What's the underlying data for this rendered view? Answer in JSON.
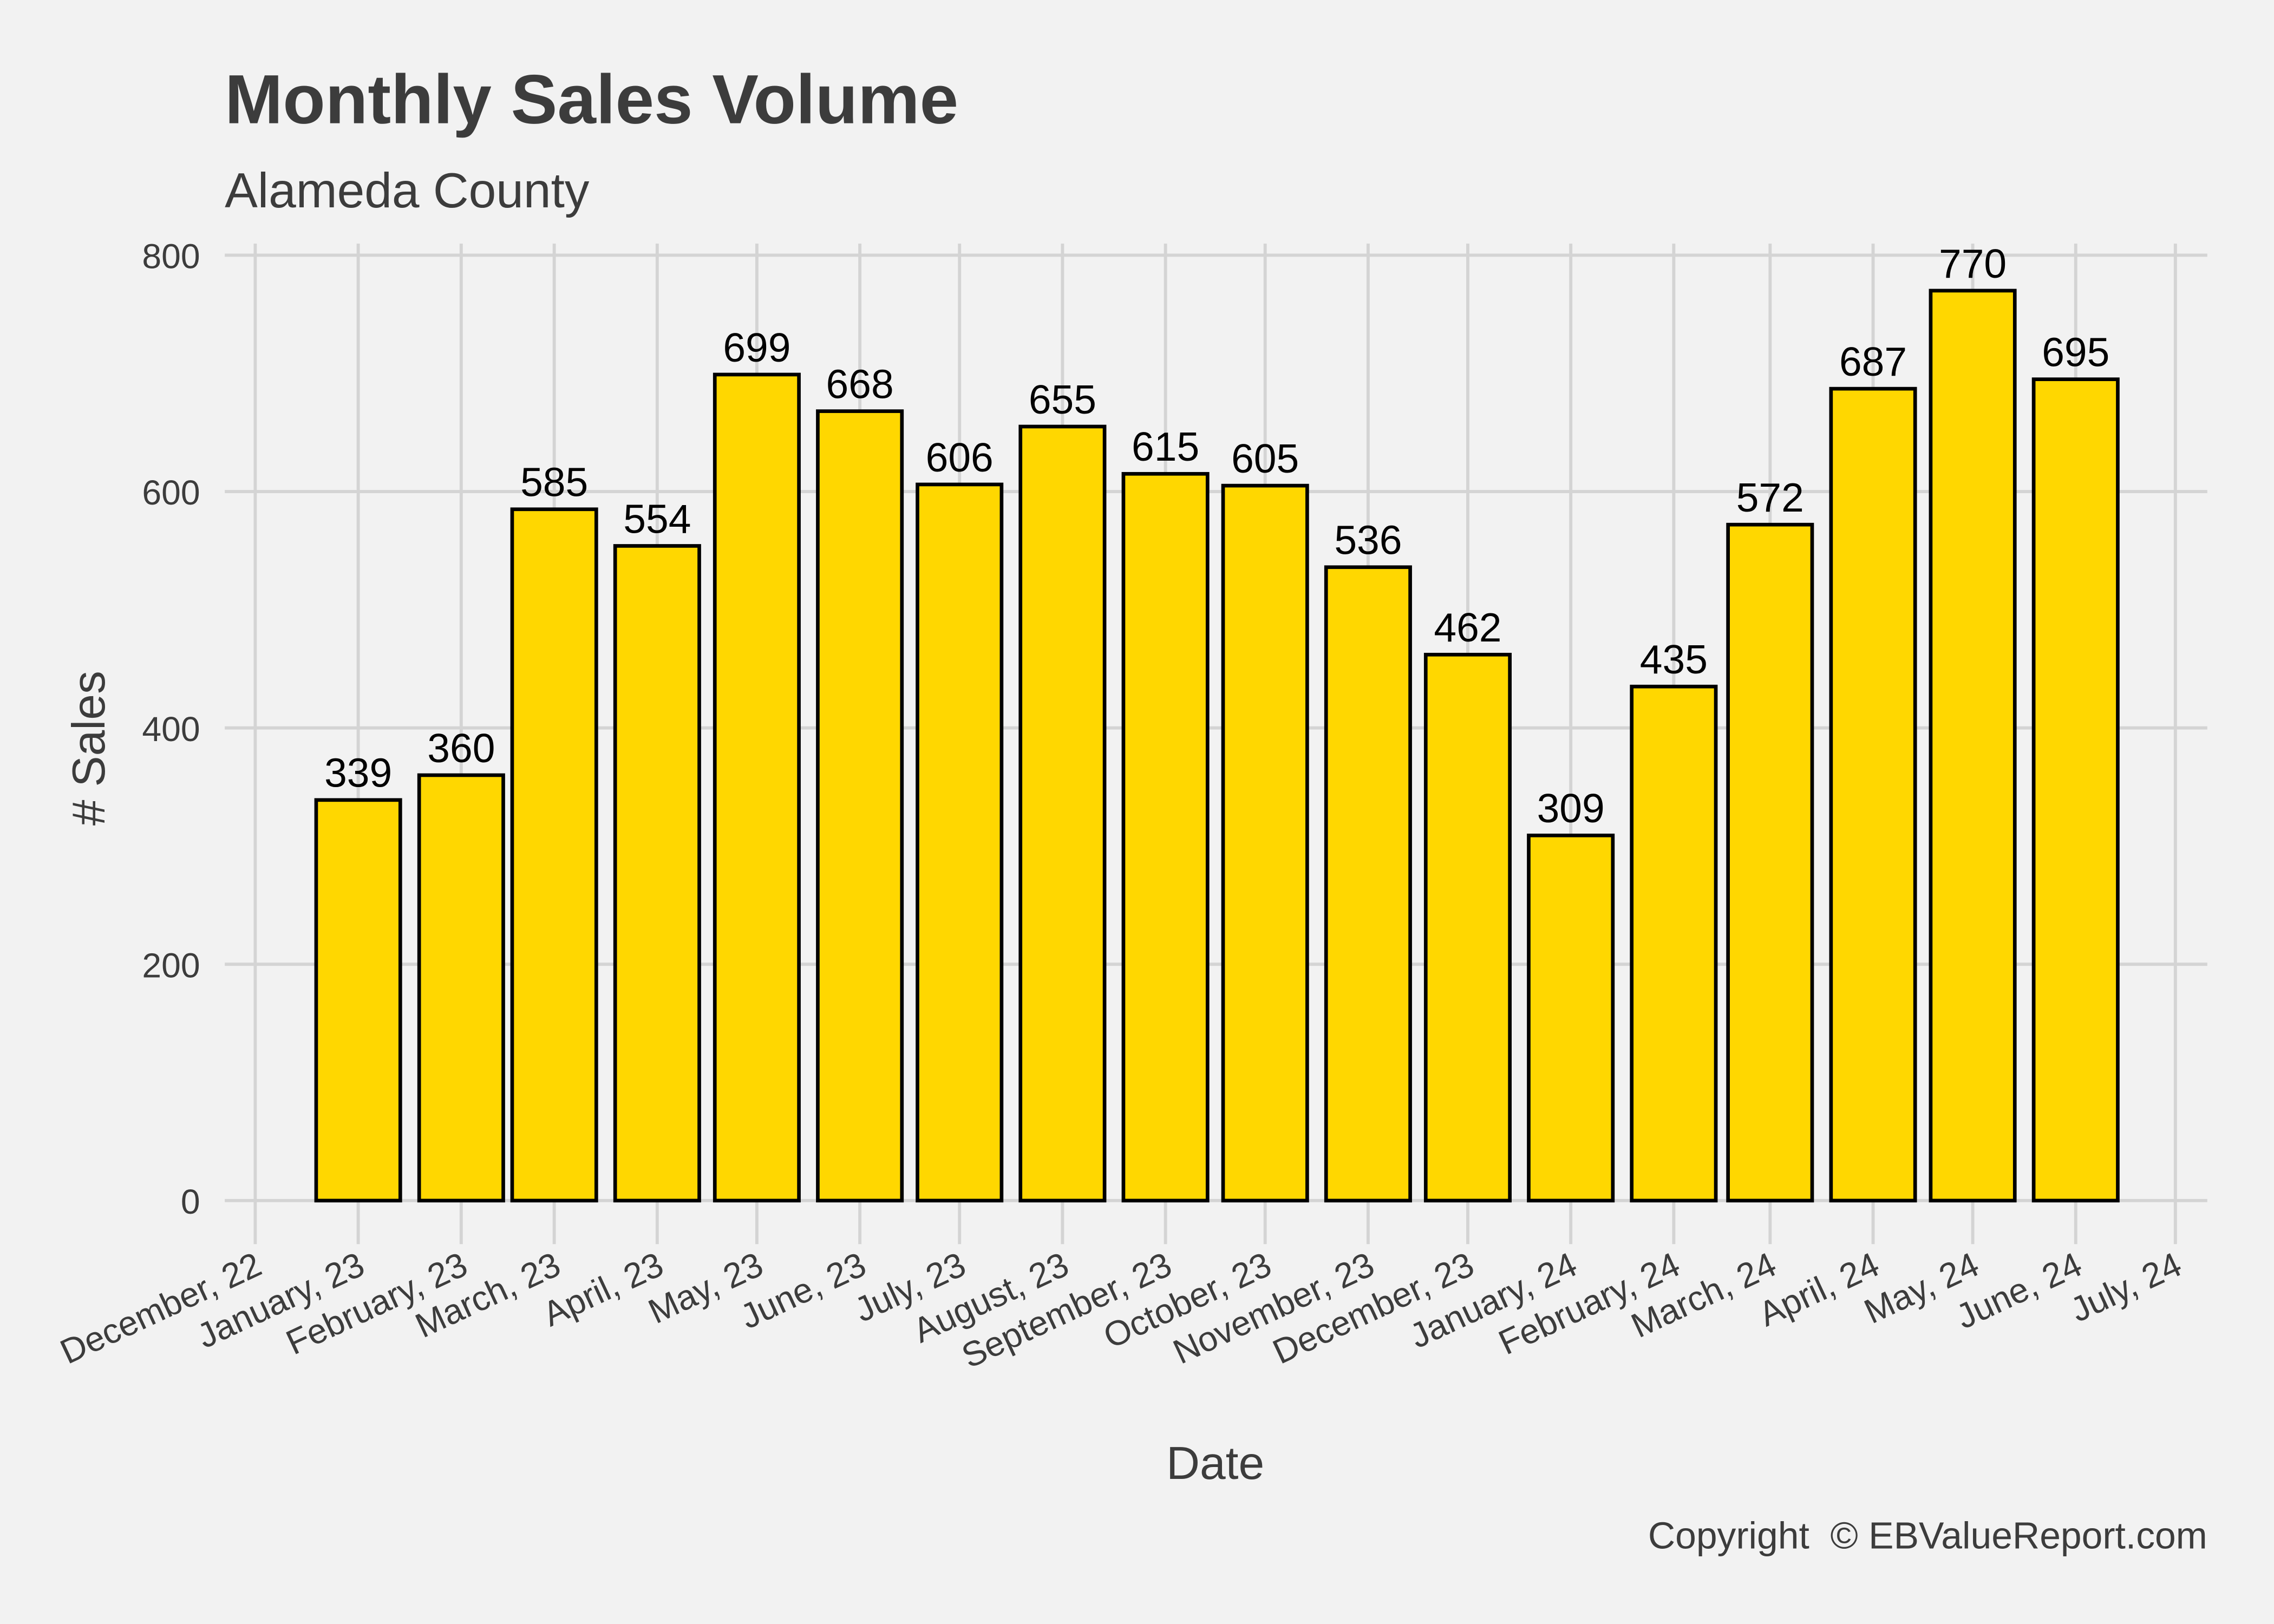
{
  "chart_data": {
    "type": "bar",
    "title": "Monthly Sales Volume",
    "subtitle": "Alameda County",
    "xlabel": "Date",
    "ylabel": "# Sales",
    "caption": "Copyright  © EBValueReport.com",
    "ylim": [
      0,
      800
    ],
    "yticks": [
      0,
      200,
      400,
      600,
      800
    ],
    "xlim": [
      "2022-12-01",
      "2024-07-01"
    ],
    "xticks": [
      {
        "date": "2022-12-01",
        "label": "December, 22"
      },
      {
        "date": "2023-01-01",
        "label": "January, 23"
      },
      {
        "date": "2023-02-01",
        "label": "February, 23"
      },
      {
        "date": "2023-03-01",
        "label": "March, 23"
      },
      {
        "date": "2023-04-01",
        "label": "April, 23"
      },
      {
        "date": "2023-05-01",
        "label": "May, 23"
      },
      {
        "date": "2023-06-01",
        "label": "June, 23"
      },
      {
        "date": "2023-07-01",
        "label": "July, 23"
      },
      {
        "date": "2023-08-01",
        "label": "August, 23"
      },
      {
        "date": "2023-09-01",
        "label": "September, 23"
      },
      {
        "date": "2023-10-01",
        "label": "October, 23"
      },
      {
        "date": "2023-11-01",
        "label": "November, 23"
      },
      {
        "date": "2023-12-01",
        "label": "December, 23"
      },
      {
        "date": "2024-01-01",
        "label": "January, 24"
      },
      {
        "date": "2024-02-01",
        "label": "February, 24"
      },
      {
        "date": "2024-03-01",
        "label": "March, 24"
      },
      {
        "date": "2024-04-01",
        "label": "April, 24"
      },
      {
        "date": "2024-05-01",
        "label": "May, 24"
      },
      {
        "date": "2024-06-01",
        "label": "June, 24"
      },
      {
        "date": "2024-07-01",
        "label": "July, 24"
      }
    ],
    "x": [
      "2023-01-01",
      "2023-02-01",
      "2023-03-01",
      "2023-04-01",
      "2023-05-01",
      "2023-06-01",
      "2023-07-01",
      "2023-08-01",
      "2023-09-01",
      "2023-10-01",
      "2023-11-01",
      "2023-12-01",
      "2024-01-01",
      "2024-02-01",
      "2024-03-01",
      "2024-04-01",
      "2024-05-01",
      "2024-06-01"
    ],
    "values": [
      339,
      360,
      585,
      554,
      699,
      668,
      606,
      655,
      615,
      605,
      536,
      462,
      309,
      435,
      572,
      687,
      770,
      695
    ],
    "grid": true,
    "colors": {
      "bar": "#FFD700",
      "bar_outline": "#000000",
      "background": "#F2F2F2",
      "grid": "#D4D4D4",
      "text": "#3C3C3C"
    }
  }
}
